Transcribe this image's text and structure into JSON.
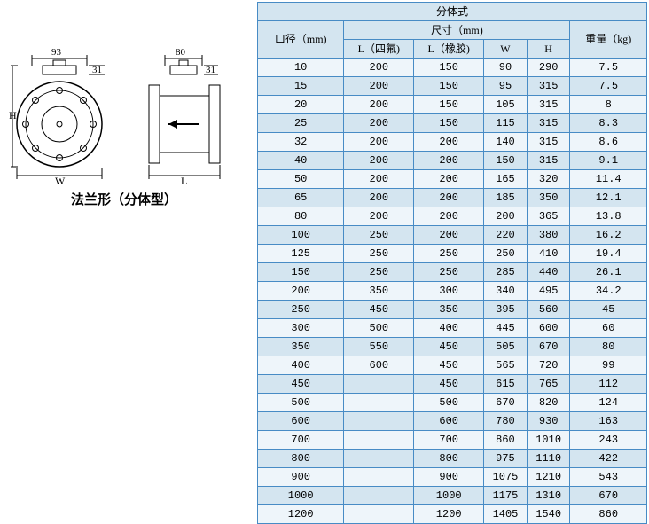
{
  "caption": "法兰形（分体型）",
  "diagram": {
    "dim_left_top_w": "93",
    "dim_left_top_h": "31",
    "dim_right_top_w": "80",
    "dim_right_top_h": "31",
    "label_H": "H",
    "label_W": "W",
    "label_L": "L"
  },
  "table": {
    "title": "分体式",
    "col_dia_header": "口径（mm)",
    "col_dim_header": "尺寸（mm)",
    "col_weight_header": "重量（kg)",
    "sub_headers": [
      "L（四氟)",
      "L（橡胶)",
      "W",
      "H"
    ],
    "rows": [
      [
        "10",
        "200",
        "150",
        "90",
        "290",
        "7.5"
      ],
      [
        "15",
        "200",
        "150",
        "95",
        "315",
        "7.5"
      ],
      [
        "20",
        "200",
        "150",
        "105",
        "315",
        "8"
      ],
      [
        "25",
        "200",
        "150",
        "115",
        "315",
        "8.3"
      ],
      [
        "32",
        "200",
        "200",
        "140",
        "315",
        "8.6"
      ],
      [
        "40",
        "200",
        "200",
        "150",
        "315",
        "9.1"
      ],
      [
        "50",
        "200",
        "200",
        "165",
        "320",
        "11.4"
      ],
      [
        "65",
        "200",
        "200",
        "185",
        "350",
        "12.1"
      ],
      [
        "80",
        "200",
        "200",
        "200",
        "365",
        "13.8"
      ],
      [
        "100",
        "250",
        "200",
        "220",
        "380",
        "16.2"
      ],
      [
        "125",
        "250",
        "250",
        "250",
        "410",
        "19.4"
      ],
      [
        "150",
        "250",
        "250",
        "285",
        "440",
        "26.1"
      ],
      [
        "200",
        "350",
        "300",
        "340",
        "495",
        "34.2"
      ],
      [
        "250",
        "450",
        "350",
        "395",
        "560",
        "45"
      ],
      [
        "300",
        "500",
        "400",
        "445",
        "600",
        "60"
      ],
      [
        "350",
        "550",
        "450",
        "505",
        "670",
        "80"
      ],
      [
        "400",
        "600",
        "450",
        "565",
        "720",
        "99"
      ],
      [
        "450",
        "",
        "450",
        "615",
        "765",
        "112"
      ],
      [
        "500",
        "",
        "500",
        "670",
        "820",
        "124"
      ],
      [
        "600",
        "",
        "600",
        "780",
        "930",
        "163"
      ],
      [
        "700",
        "",
        "700",
        "860",
        "1010",
        "243"
      ],
      [
        "800",
        "",
        "800",
        "975",
        "1110",
        "422"
      ],
      [
        "900",
        "",
        "900",
        "1075",
        "1210",
        "543"
      ],
      [
        "1000",
        "",
        "1000",
        "1175",
        "1310",
        "670"
      ],
      [
        "1200",
        "",
        "1200",
        "1405",
        "1540",
        "860"
      ]
    ]
  },
  "colors": {
    "border": "#478bc5",
    "header_bg": "#d4e5f0",
    "row_bg": "#eef5fa"
  }
}
